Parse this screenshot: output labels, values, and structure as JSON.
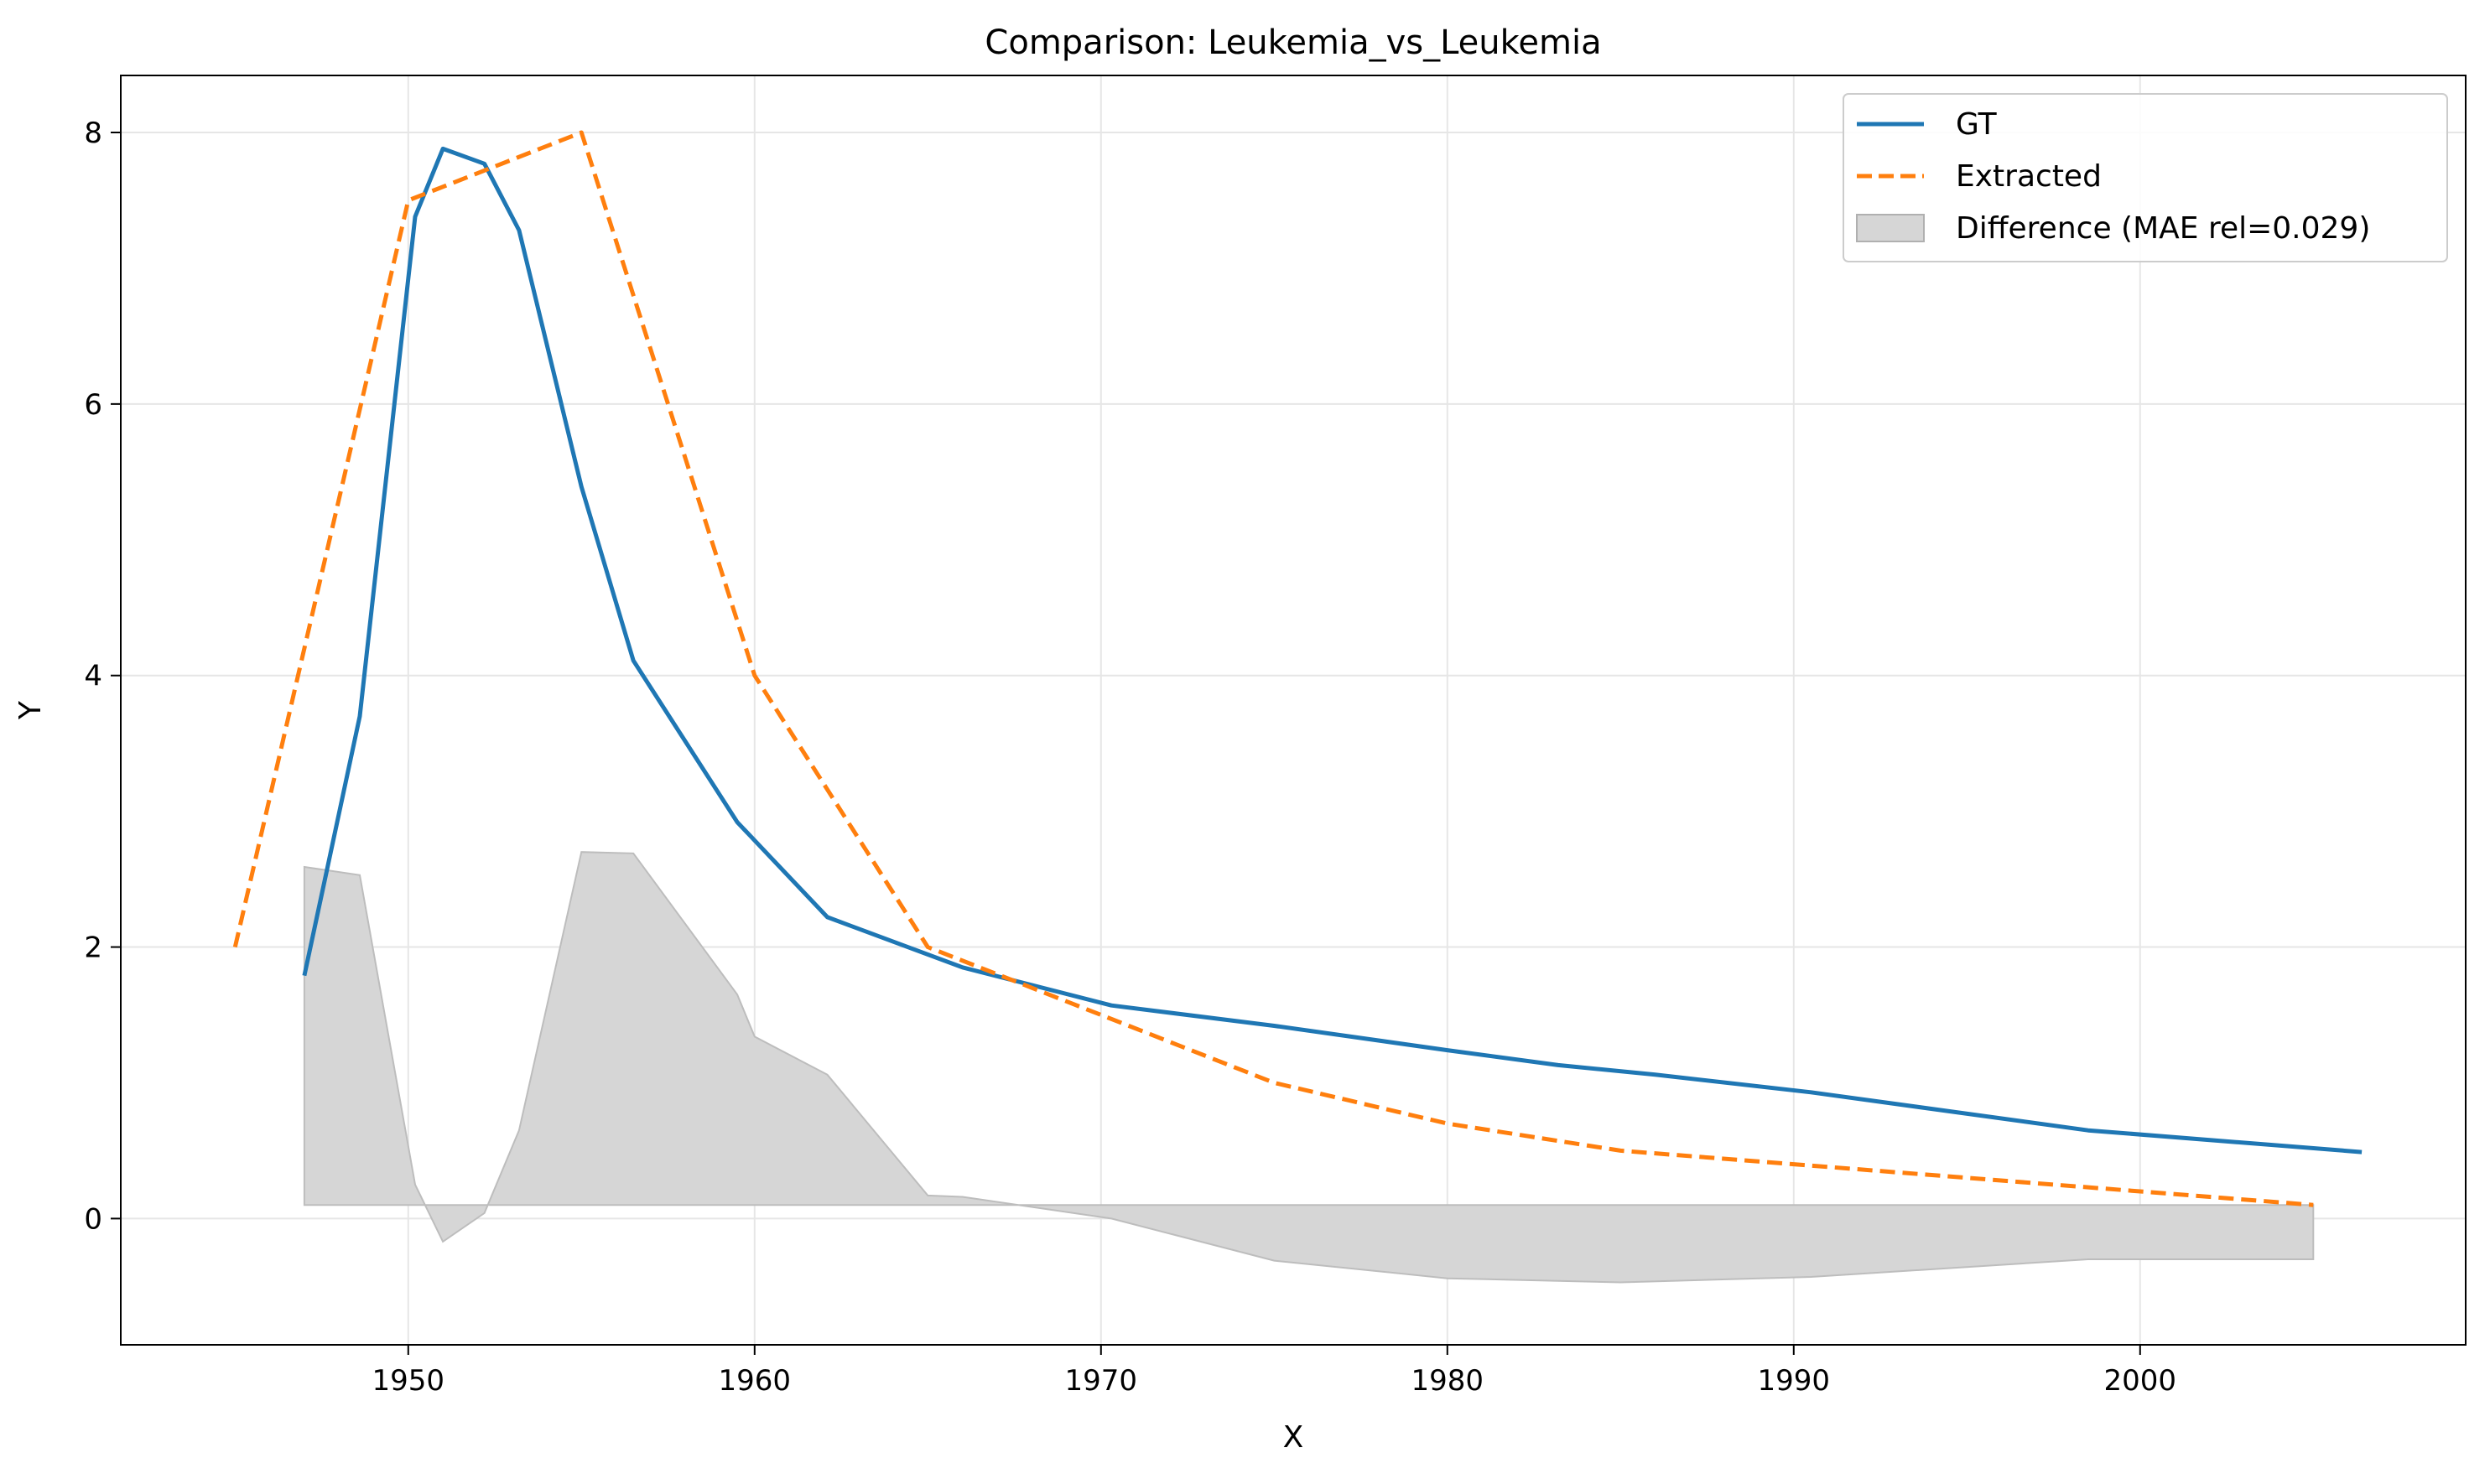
{
  "chart_data": {
    "type": "line",
    "title": "Comparison: Leukemia_vs_Leukemia",
    "xlabel": "X",
    "ylabel": "Y",
    "xlim": [
      1941.7,
      2009.4
    ],
    "ylim": [
      -0.93,
      8.42
    ],
    "x_ticks": [
      1950,
      1960,
      1970,
      1980,
      1990,
      2000
    ],
    "y_ticks": [
      0,
      2,
      4,
      6,
      8
    ],
    "grid": true,
    "legend_position": "top-right",
    "series": [
      {
        "name": "GT",
        "style": "solid",
        "color": "#1f77b4",
        "x": [
          1947.0,
          1948.6,
          1950.2,
          1951.0,
          1952.2,
          1953.2,
          1955.0,
          1956.5,
          1959.5,
          1962.1,
          1966.0,
          1970.3,
          1975.0,
          1980.0,
          1983.2,
          1986.0,
          1990.5,
          1998.5,
          2006.4
        ],
        "y": [
          1.79,
          3.7,
          7.38,
          7.88,
          7.77,
          7.28,
          5.39,
          4.11,
          2.92,
          2.22,
          1.85,
          1.57,
          1.42,
          1.24,
          1.13,
          1.06,
          0.93,
          0.65,
          0.49
        ]
      },
      {
        "name": "Extracted",
        "style": "dashed",
        "color": "#ff7f0e",
        "x": [
          1945.0,
          1950.0,
          1955.0,
          1960.0,
          1965.0,
          1970.0,
          1975.0,
          1980.0,
          1985.0,
          1990.0,
          1995.0,
          2000.0,
          2005.0
        ],
        "y": [
          2.0,
          7.5,
          8.0,
          4.0,
          2.0,
          1.5,
          1.0,
          0.7,
          0.5,
          0.4,
          0.3,
          0.2,
          0.1
        ]
      }
    ],
    "difference_band": {
      "name": "Difference (MAE rel=0.029)",
      "color": "#d6d6d6",
      "baseline": 0.1,
      "x": [
        1947.0,
        1948.6,
        1950.2,
        1951.0,
        1952.2,
        1953.2,
        1955.0,
        1956.5,
        1959.5,
        1960.0,
        1962.1,
        1965.0,
        1966.0,
        1970.3,
        1975.0,
        1980.0,
        1985.0,
        1990.5,
        1998.5,
        2005.0
      ],
      "y": [
        2.59,
        2.53,
        0.25,
        -0.17,
        0.04,
        0.65,
        2.7,
        2.69,
        1.65,
        1.34,
        1.06,
        0.17,
        0.16,
        0.0,
        -0.31,
        -0.44,
        -0.47,
        -0.43,
        -0.3,
        -0.3
      ]
    }
  }
}
